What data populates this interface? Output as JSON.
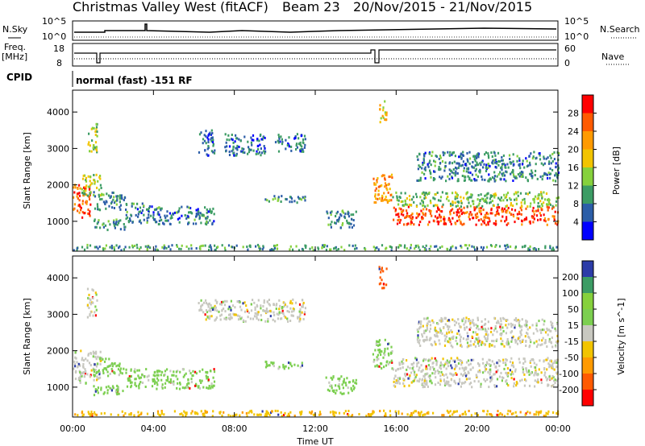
{
  "title": {
    "station": "Christmas Valley West (fitACF)",
    "beam": "Beam 23",
    "dates": "20/Nov/2015 - 21/Nov/2015"
  },
  "top_panels": {
    "nsky_label": "N.Sky",
    "nsky_ticks": [
      "10^5",
      "10^0"
    ],
    "nsearch_label": "N.Search",
    "nsearch_ticks": [
      "10^5",
      "10^0"
    ],
    "freq_label": "Freq.",
    "freq_unit": "[MHz]",
    "freq_ticks": [
      "18",
      "8"
    ],
    "nave_label": "Nave",
    "nave_ticks": [
      "60",
      "0"
    ],
    "cpid_label": "CPID",
    "cpid_text": "normal (fast) -151 RF"
  },
  "x_axis": {
    "label": "Time UT",
    "ticks": [
      "00:00",
      "04:00",
      "08:00",
      "12:00",
      "16:00",
      "20:00",
      "00:00"
    ],
    "range_hours": [
      0,
      24
    ]
  },
  "chart_data": [
    {
      "type": "heatmap",
      "title": "",
      "xlabel": "",
      "ylabel": "Slant Range [km]",
      "ylim": [
        180,
        4600
      ],
      "yticks": [
        "1000",
        "2000",
        "3000",
        "4000"
      ],
      "colorbar": {
        "label": "Power [dB]",
        "ticks": [
          "28",
          "24",
          "20",
          "16",
          "12",
          "8",
          "4"
        ],
        "colors": [
          "#ff0000",
          "#ff5a00",
          "#ff9a00",
          "#f2c400",
          "#86d13c",
          "#3c9c64",
          "#2c5ea8",
          "#0000ff"
        ]
      },
      "regions": [
        {
          "t": [
            0.0,
            0.9
          ],
          "r": [
            1100,
            2000
          ],
          "v": 26
        },
        {
          "t": [
            0.4,
            1.4
          ],
          "r": [
            1700,
            2300
          ],
          "v": 14
        },
        {
          "t": [
            0.7,
            1.2
          ],
          "r": [
            2900,
            3700
          ],
          "v": 15
        },
        {
          "t": [
            1.0,
            2.6
          ],
          "r": [
            1300,
            1800
          ],
          "v": 9
        },
        {
          "t": [
            1.0,
            2.6
          ],
          "r": [
            750,
            1050
          ],
          "v": 9
        },
        {
          "t": [
            2.6,
            4.2
          ],
          "r": [
            950,
            1500
          ],
          "v": 8
        },
        {
          "t": [
            4.2,
            7.0
          ],
          "r": [
            900,
            1400
          ],
          "v": 8
        },
        {
          "t": [
            6.2,
            7.0
          ],
          "r": [
            2800,
            3500
          ],
          "v": 7
        },
        {
          "t": [
            7.5,
            9.5
          ],
          "r": [
            2800,
            3400
          ],
          "v": 7
        },
        {
          "t": [
            9.5,
            11.5
          ],
          "r": [
            1500,
            1700
          ],
          "v": 9
        },
        {
          "t": [
            10.0,
            11.5
          ],
          "r": [
            2900,
            3400
          ],
          "v": 7
        },
        {
          "t": [
            12.5,
            14.0
          ],
          "r": [
            800,
            1300
          ],
          "v": 9
        },
        {
          "t": [
            14.8,
            15.8
          ],
          "r": [
            1500,
            2300
          ],
          "v": 22
        },
        {
          "t": [
            15.1,
            15.5
          ],
          "r": [
            3700,
            4300
          ],
          "v": 19
        },
        {
          "t": [
            15.8,
            24.0
          ],
          "r": [
            900,
            1400
          ],
          "v": 27
        },
        {
          "t": [
            15.8,
            24.0
          ],
          "r": [
            1400,
            1800
          ],
          "v": 13
        },
        {
          "t": [
            17.0,
            24.0
          ],
          "r": [
            2100,
            2900
          ],
          "v": 8
        },
        {
          "t": [
            0.0,
            24.0
          ],
          "r": [
            200,
            350
          ],
          "v": 10
        }
      ]
    },
    {
      "type": "heatmap",
      "title": "",
      "xlabel": "Time UT",
      "ylabel": "Slant Range [km]",
      "ylim": [
        180,
        4600
      ],
      "yticks": [
        "1000",
        "2000",
        "3000",
        "4000"
      ],
      "colorbar": {
        "label": "Velocity [m s^-1]",
        "ticks": [
          "200",
          "100",
          "50",
          "15",
          "-15",
          "-50",
          "-100",
          "-200"
        ],
        "colors": [
          "#2c3ca8",
          "#3c9c64",
          "#86d13c",
          "#7ccf50",
          "#c8c8c0",
          "#f2c400",
          "#ff9a00",
          "#ff5a00",
          "#ff0000"
        ]
      },
      "regions": [
        {
          "t": [
            0.0,
            1.4
          ],
          "r": [
            1100,
            2000
          ],
          "v": 0
        },
        {
          "t": [
            0.7,
            1.2
          ],
          "r": [
            2900,
            3700
          ],
          "v": 0
        },
        {
          "t": [
            1.0,
            2.6
          ],
          "r": [
            1300,
            1800
          ],
          "v": 30
        },
        {
          "t": [
            1.0,
            2.6
          ],
          "r": [
            750,
            1050
          ],
          "v": 30
        },
        {
          "t": [
            2.6,
            7.0
          ],
          "r": [
            950,
            1500
          ],
          "v": 30
        },
        {
          "t": [
            6.2,
            11.5
          ],
          "r": [
            2800,
            3400
          ],
          "v": 0
        },
        {
          "t": [
            9.5,
            11.5
          ],
          "r": [
            1500,
            1700
          ],
          "v": 30
        },
        {
          "t": [
            12.5,
            14.0
          ],
          "r": [
            800,
            1300
          ],
          "v": 30
        },
        {
          "t": [
            14.8,
            15.8
          ],
          "r": [
            1500,
            2300
          ],
          "v": 30
        },
        {
          "t": [
            15.1,
            15.5
          ],
          "r": [
            3700,
            4300
          ],
          "v": -150
        },
        {
          "t": [
            15.8,
            24.0
          ],
          "r": [
            1000,
            1800
          ],
          "v": 0
        },
        {
          "t": [
            17.0,
            24.0
          ],
          "r": [
            2100,
            2900
          ],
          "v": 0
        },
        {
          "t": [
            0.0,
            24.0
          ],
          "r": [
            200,
            350
          ],
          "v": -40
        }
      ]
    }
  ]
}
